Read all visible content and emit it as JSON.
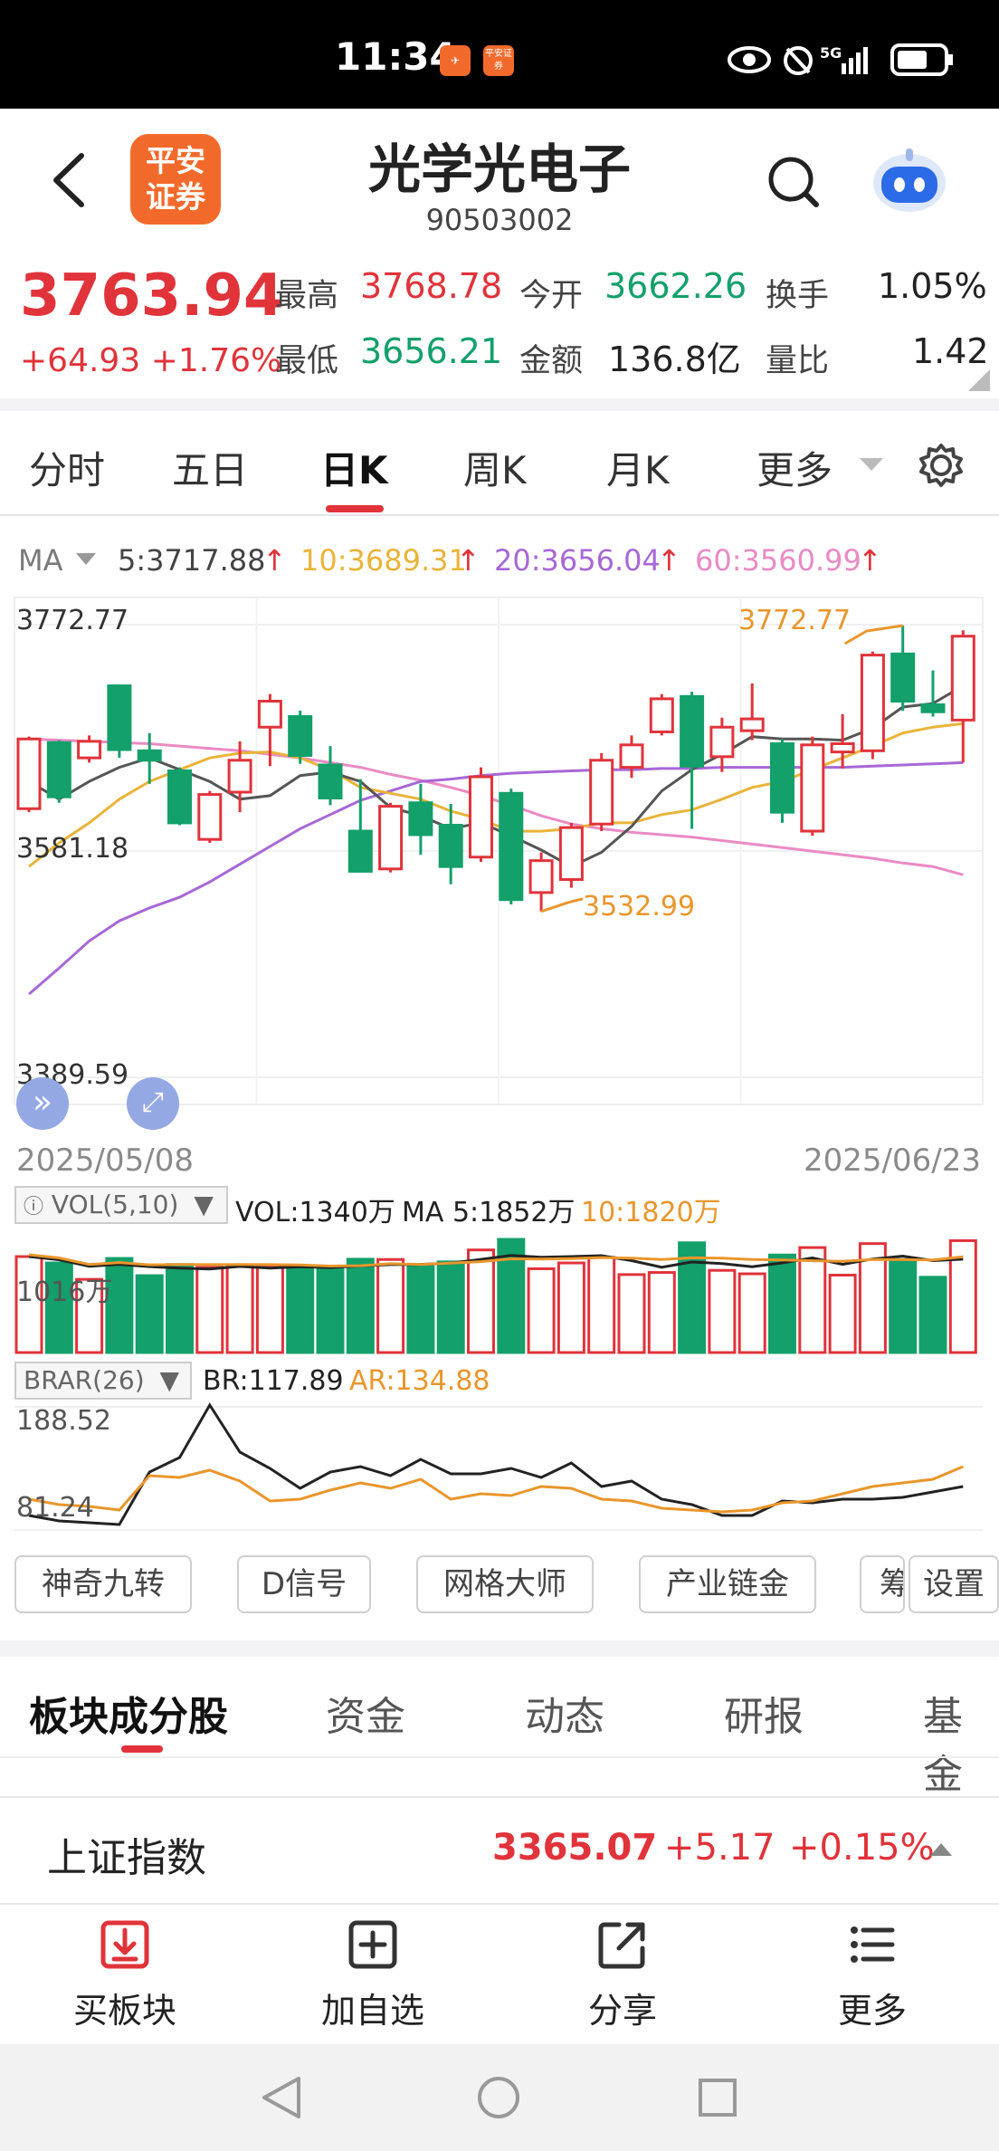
{
  "status_bar": {
    "time": "11:34",
    "app1_icon": "flag-app-icon",
    "app2_label": "平安证券",
    "network": "5G"
  },
  "header": {
    "logo_text_line1": "平安",
    "logo_text_line2": "证券",
    "title": "光学光电子",
    "code": "90503002"
  },
  "quote": {
    "price": "3763.94",
    "change": "+64.93",
    "change_pct": "+1.76%",
    "fields": {
      "high_label": "最高",
      "high": "3768.78",
      "open_label": "今开",
      "open": "3662.26",
      "turnover_label": "换手",
      "turnover": "1.05%",
      "low_label": "最低",
      "low": "3656.21",
      "amount_label": "金额",
      "amount": "136.8亿",
      "vol_ratio_label": "量比",
      "vol_ratio": "1.42"
    }
  },
  "period_tabs": [
    "分时",
    "五日",
    "日K",
    "周K",
    "月K",
    "更多"
  ],
  "active_tab": "日K",
  "ma_legend": {
    "label": "MA",
    "ma5": "5:3717.88",
    "ma10": "10:3689.31",
    "ma20": "20:3656.04",
    "ma60": "60:3560.99"
  },
  "chart_data": {
    "type": "candlestick",
    "y_axis_labels": [
      "3772.77",
      "3581.18",
      "3389.59"
    ],
    "ylim": [
      3389.59,
      3772.77
    ],
    "max_annotation": "3772.77",
    "min_annotation": "3532.99",
    "date_start": "2025/05/08",
    "date_end": "2025/06/23",
    "candles": [
      {
        "o": 3617,
        "c": 3676,
        "h": 3678,
        "l": 3614
      },
      {
        "o": 3673,
        "c": 3627,
        "h": 3675,
        "l": 3622
      },
      {
        "o": 3660,
        "c": 3674,
        "h": 3679,
        "l": 3656
      },
      {
        "o": 3721,
        "c": 3667,
        "h": 3722,
        "l": 3660
      },
      {
        "o": 3666,
        "c": 3658,
        "h": 3681,
        "l": 3638
      },
      {
        "o": 3649,
        "c": 3605,
        "h": 3652,
        "l": 3603
      },
      {
        "o": 3591,
        "c": 3629,
        "h": 3632,
        "l": 3588
      },
      {
        "o": 3631,
        "c": 3658,
        "h": 3674,
        "l": 3614
      },
      {
        "o": 3686,
        "c": 3708,
        "h": 3714,
        "l": 3653
      },
      {
        "o": 3695,
        "c": 3662,
        "h": 3700,
        "l": 3655
      },
      {
        "o": 3654,
        "c": 3626,
        "h": 3670,
        "l": 3620
      },
      {
        "o": 3598,
        "c": 3564,
        "h": 3642,
        "l": 3563
      },
      {
        "o": 3566,
        "c": 3619,
        "h": 3622,
        "l": 3563
      },
      {
        "o": 3622,
        "c": 3595,
        "h": 3638,
        "l": 3578
      },
      {
        "o": 3603,
        "c": 3568,
        "h": 3621,
        "l": 3553
      },
      {
        "o": 3576,
        "c": 3644,
        "h": 3652,
        "l": 3572
      },
      {
        "o": 3630,
        "c": 3540,
        "h": 3634,
        "l": 3536
      },
      {
        "o": 3546,
        "c": 3573,
        "h": 3580,
        "l": 3530
      },
      {
        "o": 3557,
        "c": 3601,
        "h": 3605,
        "l": 3550
      },
      {
        "o": 3604,
        "c": 3658,
        "h": 3664,
        "l": 3598
      },
      {
        "o": 3652,
        "c": 3671,
        "h": 3679,
        "l": 3643
      },
      {
        "o": 3682,
        "c": 3710,
        "h": 3714,
        "l": 3679
      },
      {
        "o": 3712,
        "c": 3653,
        "h": 3716,
        "l": 3600
      },
      {
        "o": 3661,
        "c": 3686,
        "h": 3694,
        "l": 3648
      },
      {
        "o": 3683,
        "c": 3693,
        "h": 3723,
        "l": 3675
      },
      {
        "o": 3672,
        "c": 3614,
        "h": 3676,
        "l": 3605
      },
      {
        "o": 3598,
        "c": 3671,
        "h": 3678,
        "l": 3594
      },
      {
        "o": 3665,
        "c": 3672,
        "h": 3697,
        "l": 3651
      },
      {
        "o": 3666,
        "c": 3747,
        "h": 3750,
        "l": 3659
      },
      {
        "o": 3748,
        "c": 3708,
        "h": 3772,
        "l": 3700
      },
      {
        "o": 3705,
        "c": 3699,
        "h": 3734,
        "l": 3695
      },
      {
        "o": 3692,
        "c": 3763,
        "h": 3768,
        "l": 3656
      }
    ],
    "ma5": [
      3640,
      3625,
      3640,
      3652,
      3660,
      3650,
      3640,
      3625,
      3628,
      3645,
      3648,
      3640,
      3618,
      3611,
      3600,
      3605,
      3594,
      3582,
      3568,
      3580,
      3602,
      3632,
      3650,
      3663,
      3678,
      3676,
      3676,
      3675,
      3685,
      3703,
      3706,
      3721
    ],
    "ma10": [
      3568,
      3588,
      3605,
      3625,
      3640,
      3650,
      3660,
      3664,
      3665,
      3660,
      3650,
      3635,
      3630,
      3625,
      3615,
      3608,
      3598,
      3598,
      3600,
      3605,
      3605,
      3612,
      3616,
      3625,
      3635,
      3640,
      3650,
      3660,
      3670,
      3681,
      3686,
      3689
    ],
    "ma20": [
      3460,
      3482,
      3505,
      3522,
      3533,
      3542,
      3555,
      3570,
      3585,
      3600,
      3612,
      3624,
      3632,
      3640,
      3642,
      3645,
      3647,
      3648,
      3649,
      3650,
      3650,
      3651,
      3651,
      3652,
      3652,
      3652,
      3652,
      3652,
      3653,
      3654,
      3655,
      3656
    ],
    "ma60": [
      3676,
      3675,
      3674,
      3673,
      3672,
      3670,
      3668,
      3666,
      3663,
      3660,
      3656,
      3652,
      3646,
      3641,
      3635,
      3628,
      3620,
      3611,
      3604,
      3600,
      3597,
      3595,
      3593,
      3590,
      3587,
      3584,
      3581,
      3578,
      3575,
      3571,
      3568,
      3561
    ]
  },
  "volume": {
    "label": "VOL(5,10)",
    "vol": "VOL:1340万",
    "ma5": "MA 5:1852万",
    "ma10": "10:1820万",
    "axis_label": "1016万"
  },
  "brar": {
    "label": "BRAR(26)",
    "br": "BR:117.89",
    "ar": "AR:134.88",
    "axis_high": "188.52",
    "axis_low": "81.24"
  },
  "tools": [
    "神奇九转",
    "D信号",
    "网格大师",
    "产业链金",
    "筹",
    "设置"
  ],
  "section_tabs": [
    "板块成分股",
    "资金",
    "动态",
    "研报",
    "基金"
  ],
  "index_bar": {
    "name": "上证指数",
    "price": "3365.07",
    "change": "+5.17",
    "pct": "+0.15%"
  },
  "actions": [
    {
      "label": "买板块",
      "icon": "download-box-icon"
    },
    {
      "label": "加自选",
      "icon": "add-box-icon"
    },
    {
      "label": "分享",
      "icon": "share-icon"
    },
    {
      "label": "更多",
      "icon": "list-icon"
    }
  ],
  "colors": {
    "up": "#e0333a",
    "down": "#13a06a",
    "ma5": "#555555",
    "ma10": "#e9b43a",
    "ma20": "#a768d6",
    "ma60": "#e98bc4"
  }
}
